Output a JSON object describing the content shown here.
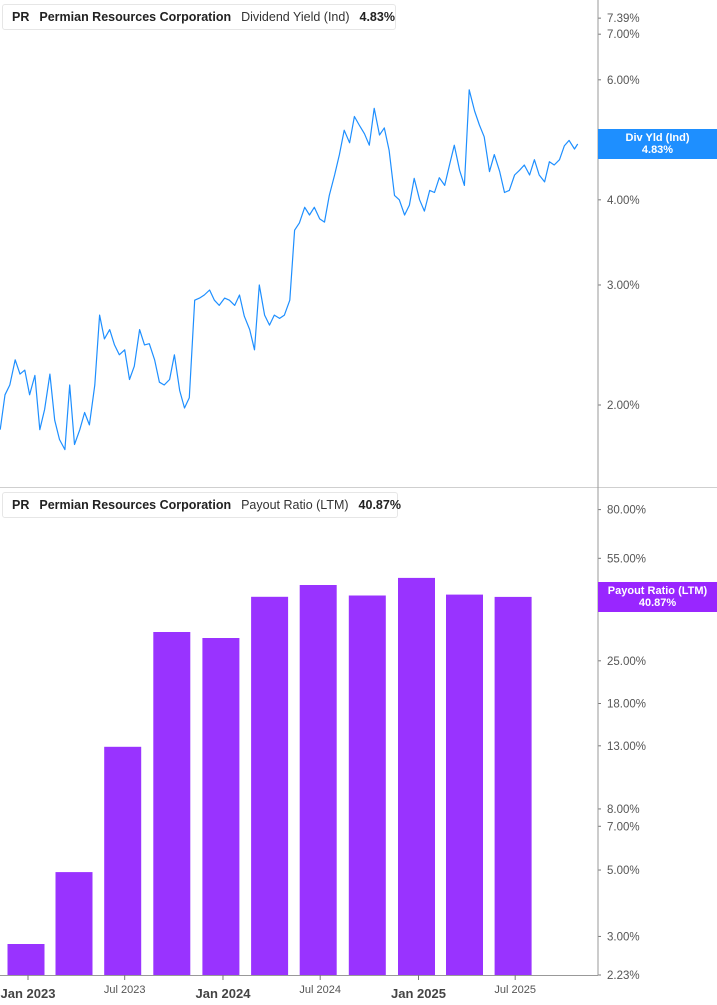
{
  "colors": {
    "line": "#1E8FFF",
    "bars": "#9933FF",
    "tag_top": "#1E8FFF",
    "tag_bottom": "#9926FF",
    "axis": "#999999"
  },
  "top_legend": {
    "ticker": "PR",
    "company": "Permian Resources Corporation",
    "metric": "Dividend Yield (Ind)",
    "value": "4.83%"
  },
  "bottom_legend": {
    "ticker": "PR",
    "company": "Permian Resources Corporation",
    "metric": "Payout Ratio (LTM)",
    "value": "40.87%"
  },
  "top_tag": {
    "label": "Div Yld (Ind)",
    "value": "4.83%"
  },
  "bottom_tag": {
    "label": "Payout Ratio (LTM)",
    "value": "40.87%"
  },
  "chart_data": [
    {
      "type": "line",
      "title": "Dividend Yield (Ind)",
      "yscale": "log",
      "ylim": [
        1.6,
        7.6
      ],
      "yticks": [
        {
          "v": 2,
          "label": "2.00%"
        },
        {
          "v": 3,
          "label": "3.00%"
        },
        {
          "v": 4,
          "label": "4.00%"
        },
        {
          "v": 6,
          "label": "6.00%"
        },
        {
          "v": 7,
          "label": "7.00%"
        },
        {
          "v": 7.39,
          "label": "7.39%"
        }
      ],
      "grid": false,
      "series": [
        {
          "name": "Div Yld (Ind)",
          "points": [
            [
              "2022-11-10",
              1.84
            ],
            [
              "2022-11-19",
              2.07
            ],
            [
              "2022-11-28",
              2.14
            ],
            [
              "2022-12-08",
              2.33
            ],
            [
              "2022-12-17",
              2.22
            ],
            [
              "2022-12-26",
              2.25
            ],
            [
              "2023-01-04",
              2.07
            ],
            [
              "2023-01-14",
              2.21
            ],
            [
              "2023-01-23",
              1.84
            ],
            [
              "2023-02-01",
              1.97
            ],
            [
              "2023-02-11",
              2.22
            ],
            [
              "2023-02-20",
              1.9
            ],
            [
              "2023-03-01",
              1.78
            ],
            [
              "2023-03-11",
              1.72
            ],
            [
              "2023-03-20",
              2.14
            ],
            [
              "2023-03-29",
              1.75
            ],
            [
              "2023-04-08",
              1.84
            ],
            [
              "2023-04-17",
              1.95
            ],
            [
              "2023-04-26",
              1.87
            ],
            [
              "2023-05-06",
              2.14
            ],
            [
              "2023-05-15",
              2.71
            ],
            [
              "2023-05-24",
              2.5
            ],
            [
              "2023-06-03",
              2.58
            ],
            [
              "2023-06-12",
              2.45
            ],
            [
              "2023-06-21",
              2.37
            ],
            [
              "2023-07-01",
              2.41
            ],
            [
              "2023-07-10",
              2.18
            ],
            [
              "2023-07-19",
              2.28
            ],
            [
              "2023-07-29",
              2.58
            ],
            [
              "2023-08-07",
              2.45
            ],
            [
              "2023-08-16",
              2.46
            ],
            [
              "2023-08-26",
              2.33
            ],
            [
              "2023-09-04",
              2.16
            ],
            [
              "2023-09-13",
              2.14
            ],
            [
              "2023-09-23",
              2.18
            ],
            [
              "2023-10-02",
              2.37
            ],
            [
              "2023-10-12",
              2.1
            ],
            [
              "2023-10-21",
              1.98
            ],
            [
              "2023-10-30",
              2.05
            ],
            [
              "2023-11-09",
              2.85
            ],
            [
              "2023-11-18",
              2.87
            ],
            [
              "2023-11-27",
              2.9
            ],
            [
              "2023-12-07",
              2.95
            ],
            [
              "2023-12-16",
              2.85
            ],
            [
              "2023-12-25",
              2.8
            ],
            [
              "2024-01-04",
              2.87
            ],
            [
              "2024-01-13",
              2.85
            ],
            [
              "2024-01-23",
              2.8
            ],
            [
              "2024-02-01",
              2.9
            ],
            [
              "2024-02-10",
              2.7
            ],
            [
              "2024-02-20",
              2.58
            ],
            [
              "2024-02-29",
              2.41
            ],
            [
              "2024-03-09",
              3.0
            ],
            [
              "2024-03-19",
              2.71
            ],
            [
              "2024-03-28",
              2.62
            ],
            [
              "2024-04-06",
              2.71
            ],
            [
              "2024-04-16",
              2.68
            ],
            [
              "2024-04-25",
              2.71
            ],
            [
              "2024-05-05",
              2.85
            ],
            [
              "2024-05-14",
              3.61
            ],
            [
              "2024-05-23",
              3.7
            ],
            [
              "2024-06-02",
              3.9
            ],
            [
              "2024-06-11",
              3.8
            ],
            [
              "2024-06-20",
              3.9
            ],
            [
              "2024-06-30",
              3.75
            ],
            [
              "2024-07-09",
              3.71
            ],
            [
              "2024-07-18",
              4.06
            ],
            [
              "2024-07-28",
              4.35
            ],
            [
              "2024-08-06",
              4.66
            ],
            [
              "2024-08-15",
              5.06
            ],
            [
              "2024-08-25",
              4.85
            ],
            [
              "2024-09-03",
              5.3
            ],
            [
              "2024-09-12",
              5.15
            ],
            [
              "2024-09-22",
              5.0
            ],
            [
              "2024-10-01",
              4.81
            ],
            [
              "2024-10-10",
              5.45
            ],
            [
              "2024-10-20",
              4.98
            ],
            [
              "2024-10-29",
              5.1
            ],
            [
              "2024-11-07",
              4.73
            ],
            [
              "2024-11-17",
              4.06
            ],
            [
              "2024-11-26",
              4.0
            ],
            [
              "2024-12-06",
              3.8
            ],
            [
              "2024-12-15",
              3.93
            ],
            [
              "2024-12-24",
              4.3
            ],
            [
              "2025-01-03",
              4.0
            ],
            [
              "2025-01-12",
              3.85
            ],
            [
              "2025-01-22",
              4.13
            ],
            [
              "2025-01-31",
              4.1
            ],
            [
              "2025-02-09",
              4.31
            ],
            [
              "2025-02-19",
              4.2
            ],
            [
              "2025-02-28",
              4.5
            ],
            [
              "2025-03-09",
              4.81
            ],
            [
              "2025-03-19",
              4.42
            ],
            [
              "2025-03-28",
              4.2
            ],
            [
              "2025-04-06",
              5.8
            ],
            [
              "2025-04-16",
              5.4
            ],
            [
              "2025-04-25",
              5.15
            ],
            [
              "2025-05-04",
              4.95
            ],
            [
              "2025-05-14",
              4.4
            ],
            [
              "2025-05-23",
              4.66
            ],
            [
              "2025-06-02",
              4.4
            ],
            [
              "2025-06-11",
              4.1
            ],
            [
              "2025-06-20",
              4.13
            ],
            [
              "2025-06-30",
              4.35
            ],
            [
              "2025-07-09",
              4.42
            ],
            [
              "2025-07-18",
              4.5
            ],
            [
              "2025-07-28",
              4.35
            ],
            [
              "2025-08-06",
              4.58
            ],
            [
              "2025-08-15",
              4.35
            ],
            [
              "2025-08-25",
              4.25
            ],
            [
              "2025-09-03",
              4.55
            ],
            [
              "2025-09-12",
              4.5
            ],
            [
              "2025-09-22",
              4.58
            ],
            [
              "2025-10-01",
              4.8
            ],
            [
              "2025-10-10",
              4.89
            ],
            [
              "2025-10-20",
              4.75
            ],
            [
              "2025-10-26",
              4.83
            ]
          ]
        }
      ]
    },
    {
      "type": "bar",
      "title": "Payout Ratio (LTM)",
      "yscale": "log",
      "ylim": [
        2.23,
        80
      ],
      "yticks": [
        {
          "v": 2.23,
          "label": "2.23%"
        },
        {
          "v": 3,
          "label": "3.00%"
        },
        {
          "v": 5,
          "label": "5.00%"
        },
        {
          "v": 7,
          "label": "7.00%"
        },
        {
          "v": 8,
          "label": "8.00%"
        },
        {
          "v": 13,
          "label": "13.00%"
        },
        {
          "v": 18,
          "label": "18.00%"
        },
        {
          "v": 25,
          "label": "25.00%"
        },
        {
          "v": 55,
          "label": "55.00%"
        },
        {
          "v": 80,
          "label": "80.00%"
        }
      ],
      "grid": false,
      "categories": [
        "2022-12-31",
        "2023-03-31",
        "2023-06-30",
        "2023-09-30",
        "2023-12-31",
        "2024-03-31",
        "2024-06-30",
        "2024-09-30",
        "2024-12-31",
        "2025-03-31",
        "2025-06-30"
      ],
      "series": [
        {
          "name": "Payout Ratio (LTM)",
          "values": [
            2.83,
            4.92,
            12.9,
            31.2,
            29.8,
            40.9,
            44.8,
            41.3,
            47.3,
            41.6,
            40.87
          ]
        }
      ],
      "xticks": [
        {
          "date": "2023-01-01",
          "label": "Jan 2023",
          "major": true
        },
        {
          "date": "2023-07-01",
          "label": "Jul 2023",
          "major": false
        },
        {
          "date": "2024-01-01",
          "label": "Jan 2024",
          "major": true
        },
        {
          "date": "2024-07-01",
          "label": "Jul 2024",
          "major": false
        },
        {
          "date": "2025-01-01",
          "label": "Jan 2025",
          "major": true
        },
        {
          "date": "2025-07-01",
          "label": "Jul 2025",
          "major": false
        }
      ]
    }
  ]
}
